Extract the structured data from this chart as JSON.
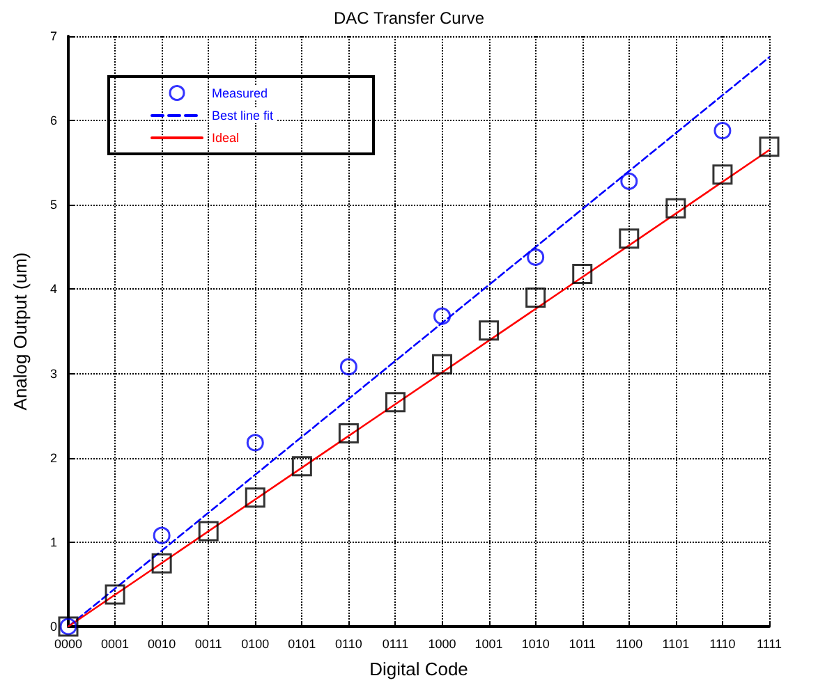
{
  "chart_data": {
    "type": "line",
    "title": "DAC Transfer Curve",
    "xlabel": "Digital Code",
    "ylabel": "Analog Output (um)",
    "categories": [
      "0000",
      "0001",
      "0010",
      "0011",
      "0100",
      "0101",
      "0110",
      "0111",
      "1000",
      "1001",
      "1010",
      "1011",
      "1100",
      "1101",
      "1110",
      "1111"
    ],
    "ylim": [
      0,
      7
    ],
    "yticks": [
      0,
      1,
      2,
      3,
      4,
      5,
      6,
      7
    ],
    "grid": true,
    "legend": "top left",
    "series": [
      {
        "name": "Measured",
        "type": "scatter",
        "marker": "circle",
        "color": "#0000ff",
        "values": [
          0,
          null,
          1.08,
          null,
          2.18,
          null,
          3.08,
          null,
          3.68,
          null,
          4.38,
          null,
          5.28,
          null,
          5.88,
          null
        ]
      },
      {
        "name": "Best line fit",
        "marker": "none",
        "line_style": "dashed",
        "color": "#0000ff",
        "values": [
          0,
          null,
          null,
          null,
          null,
          null,
          null,
          null,
          null,
          null,
          null,
          null,
          null,
          null,
          null,
          6.75
        ]
      },
      {
        "type": "scatter",
        "marker": "square",
        "color": "#000000",
        "values": [
          0,
          0.38,
          0.75,
          1.13,
          1.53,
          1.9,
          2.29,
          2.66,
          3.11,
          3.51,
          3.9,
          4.18,
          4.6,
          4.96,
          5.36,
          5.69
        ]
      },
      {
        "name": "Ideal",
        "marker": "none",
        "line_style": "solid",
        "color": "#ff0000",
        "values": [
          0,
          null,
          null,
          null,
          null,
          null,
          null,
          null,
          null,
          null,
          null,
          null,
          null,
          null,
          null,
          5.65
        ]
      }
    ]
  }
}
